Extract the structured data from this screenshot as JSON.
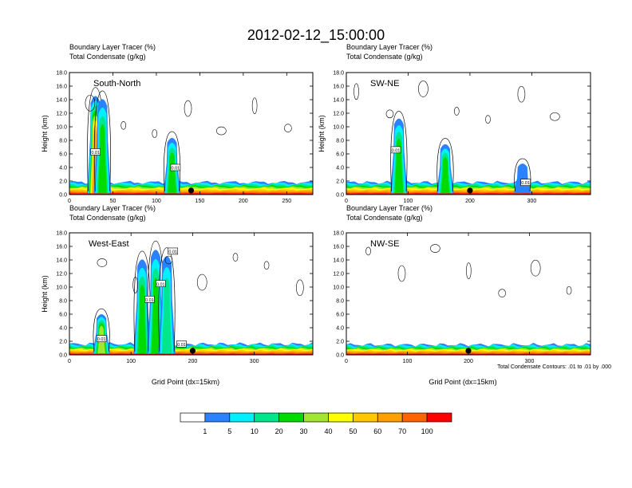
{
  "figure": {
    "title": "2012-02-12_15:00:00",
    "legend": {
      "levels": [
        "1",
        "5",
        "10",
        "20",
        "30",
        "40",
        "50",
        "60",
        "70",
        "100"
      ],
      "colors": [
        "#ffffff",
        "#2a82ff",
        "#00f0ff",
        "#00e68c",
        "#00dc00",
        "#a0e632",
        "#ffff00",
        "#ffc800",
        "#ffa000",
        "#ff6400",
        "#ff0000"
      ]
    },
    "footnote": "Total Condensate Contours: .01 to .01 by .000"
  },
  "chart_data": [
    {
      "type": "heatmap",
      "name": "South-North",
      "title": "South-North",
      "line1": "Boundary Layer Tracer   (%)",
      "line2": "Total Condensate   (g/kg)",
      "ylabel": "Height (km)",
      "xlabel": "",
      "xlim": [
        0,
        280
      ],
      "ylim": [
        0,
        18
      ],
      "xticks": [
        0,
        50,
        100,
        150,
        200,
        250
      ],
      "xtick_labels": [
        "0",
        "50",
        "100",
        "150",
        "200",
        "250"
      ],
      "yticks": [
        0,
        2,
        4,
        6,
        8,
        10,
        12,
        14,
        16,
        18
      ],
      "ytick_labels": [
        "0.0",
        "2.0",
        "4.0",
        "6.0",
        "8.0",
        "10.0",
        "12.0",
        "14.0",
        "16.0",
        "18.0"
      ],
      "station_x": 140,
      "boundary_layer_top_km": 1.8,
      "plumes": [
        {
          "x": 30,
          "top_km": 15,
          "max_pct": 70
        },
        {
          "x": 38,
          "top_km": 14.5,
          "max_pct": 30
        },
        {
          "x": 118,
          "top_km": 8.5,
          "max_pct": 30
        }
      ],
      "contour_labels": [
        {
          "text": "0.01",
          "x": 30,
          "y_km": 6.3
        },
        {
          "text": "0.01",
          "x": 122,
          "y_km": 4.0
        }
      ]
    },
    {
      "type": "heatmap",
      "name": "SW-NE",
      "title": "SW-NE",
      "line1": "Boundary Layer Tracer   (%)",
      "line2": "Total Condensate   (g/kg)",
      "ylabel": "Height (km)",
      "xlabel": "",
      "xlim": [
        0,
        395
      ],
      "ylim": [
        0,
        18
      ],
      "xticks": [
        0,
        100,
        200,
        300
      ],
      "xtick_labels": [
        "0",
        "100",
        "200",
        "300"
      ],
      "yticks": [
        0,
        2,
        4,
        6,
        8,
        10,
        12,
        14,
        16,
        18
      ],
      "ytick_labels": [
        "0.0",
        "2.0",
        "4.0",
        "6.0",
        "8.0",
        "10.0",
        "12.0",
        "14.0",
        "16.0",
        "18.0"
      ],
      "station_x": 200,
      "boundary_layer_top_km": 1.8,
      "plumes": [
        {
          "x": 85,
          "top_km": 11.5,
          "max_pct": 30
        },
        {
          "x": 160,
          "top_km": 7.5,
          "max_pct": 30
        },
        {
          "x": 285,
          "top_km": 4.5,
          "max_pct": 5
        }
      ],
      "contour_labels": [
        {
          "text": "0.01",
          "x": 80,
          "y_km": 6.6
        },
        {
          "text": "0.01",
          "x": 290,
          "y_km": 1.8
        }
      ]
    },
    {
      "type": "heatmap",
      "name": "West-East",
      "title": "West-East",
      "line1": "Boundary Layer Tracer   (%)",
      "line2": "Total Condensate   (g/kg)",
      "ylabel": "Height (km)",
      "xlabel": "Grid Point (dx=15km)",
      "xlim": [
        0,
        395
      ],
      "ylim": [
        0,
        18
      ],
      "xticks": [
        0,
        100,
        200,
        300
      ],
      "xtick_labels": [
        "0",
        "100",
        "200",
        "300"
      ],
      "yticks": [
        0,
        2,
        4,
        6,
        8,
        10,
        12,
        14,
        16,
        18
      ],
      "ytick_labels": [
        "0.0",
        "2.0",
        "4.0",
        "6.0",
        "8.0",
        "10.0",
        "12.0",
        "14.0",
        "16.0",
        "18.0"
      ],
      "station_x": 200,
      "boundary_layer_top_km": 1.6,
      "plumes": [
        {
          "x": 52,
          "top_km": 6,
          "max_pct": 40
        },
        {
          "x": 118,
          "top_km": 14.5,
          "max_pct": 30
        },
        {
          "x": 140,
          "top_km": 16,
          "max_pct": 30
        },
        {
          "x": 158,
          "top_km": 15,
          "max_pct": 20
        }
      ],
      "contour_labels": [
        {
          "text": "0.01",
          "x": 168,
          "y_km": 15.3
        },
        {
          "text": "0.01",
          "x": 148,
          "y_km": 10.5
        },
        {
          "text": "0.01",
          "x": 130,
          "y_km": 8.2
        },
        {
          "text": "0.01",
          "x": 52,
          "y_km": 2.4
        },
        {
          "text": "0.01",
          "x": 182,
          "y_km": 1.6
        }
      ]
    },
    {
      "type": "heatmap",
      "name": "NW-SE",
      "title": "NW-SE",
      "line1": "Boundary Layer Tracer   (%)",
      "line2": "Total Condensate   (g/kg)",
      "ylabel": "",
      "xlabel": "Grid Point (dx=15km)",
      "xlim": [
        0,
        400
      ],
      "ylim": [
        0,
        18
      ],
      "xticks": [
        0,
        100,
        200,
        300
      ],
      "xtick_labels": [
        "0",
        "100",
        "200",
        "300"
      ],
      "yticks": [
        0,
        2,
        4,
        6,
        8,
        10,
        12,
        14,
        16,
        18
      ],
      "ytick_labels": [
        "0.0",
        "2.0",
        "4.0",
        "6.0",
        "8.0",
        "10.0",
        "12.0",
        "14.0",
        "16.0",
        "18.0"
      ],
      "station_x": 200,
      "boundary_layer_top_km": 1.5,
      "plumes": [],
      "contour_labels": []
    }
  ]
}
